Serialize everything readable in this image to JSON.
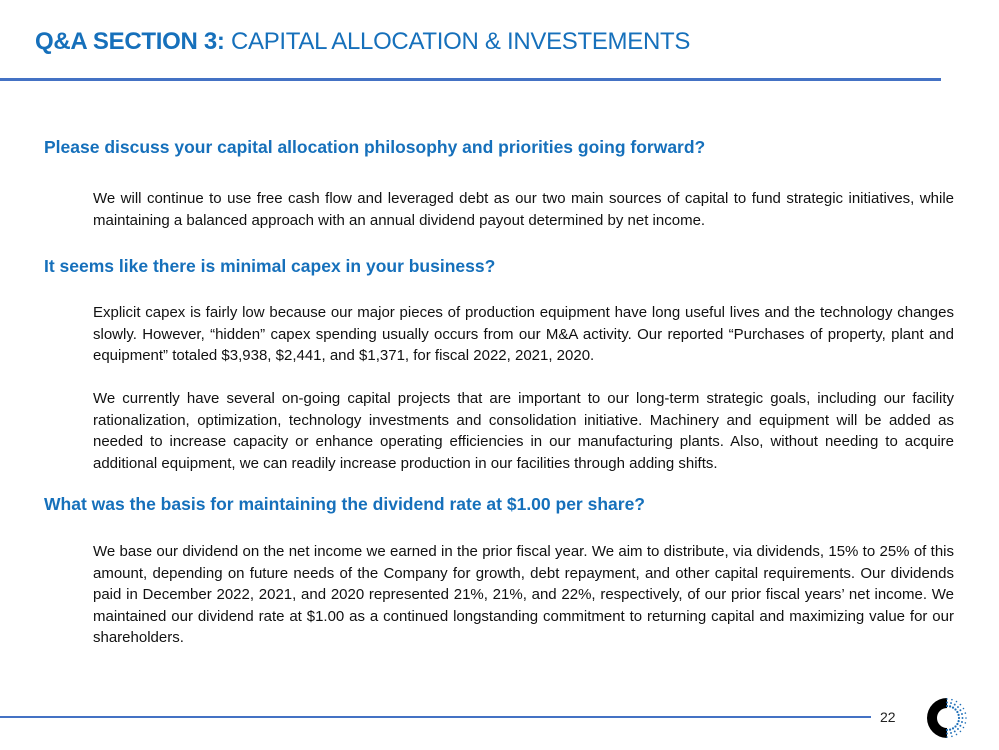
{
  "header": {
    "title_bold": "Q&A SECTION 3:",
    "title_rest": " CAPITAL ALLOCATION & INVESTEMENTS"
  },
  "sections": [
    {
      "question": "Please discuss your capital allocation philosophy and priorities going forward?",
      "answers": [
        "We will continue to use free cash flow and leveraged debt as our two main sources of capital to fund strategic initiatives, while maintaining a balanced approach with an annual dividend payout determined by net income."
      ]
    },
    {
      "question": "It seems like there is minimal capex in your business?",
      "answers": [
        "Explicit capex is fairly low because our major pieces of production equipment have long useful lives and the technology changes slowly. However, “hidden” capex spending usually occurs from our M&A activity. Our reported “Purchases of property, plant and equipment” totaled $3,938, $2,441, and $1,371, for fiscal 2022, 2021, 2020.",
        "We currently have several on-going capital projects that are important to our long-term strategic goals, including our facility rationalization, optimization, technology investments and consolidation initiative. Machinery and equipment will be added as needed to increase capacity or enhance operating efficiencies in our manufacturing plants. Also, without needing to acquire additional equipment, we can readily increase production in our facilities through adding shifts."
      ]
    },
    {
      "question": "What was the basis for maintaining the dividend rate at $1.00 per share?",
      "answers": [
        "We base our dividend on the net income we earned in the prior fiscal year. We aim to distribute, via dividends, 15% to 25% of this amount, depending on future needs of the Company for growth, debt repayment, and other capital requirements. Our dividends paid in December 2022, 2021, and 2020 represented 21%, 21%, and 22%, respectively, of our prior fiscal years’ net income. We maintained our dividend rate at $1.00 as a continued longstanding commitment to returning capital and maximizing value for our shareholders."
      ]
    }
  ],
  "footer": {
    "page_number": "22",
    "logo_icon": "company-logo-icon"
  },
  "colors": {
    "accent": "#1670bb",
    "rule": "#4472c4"
  }
}
